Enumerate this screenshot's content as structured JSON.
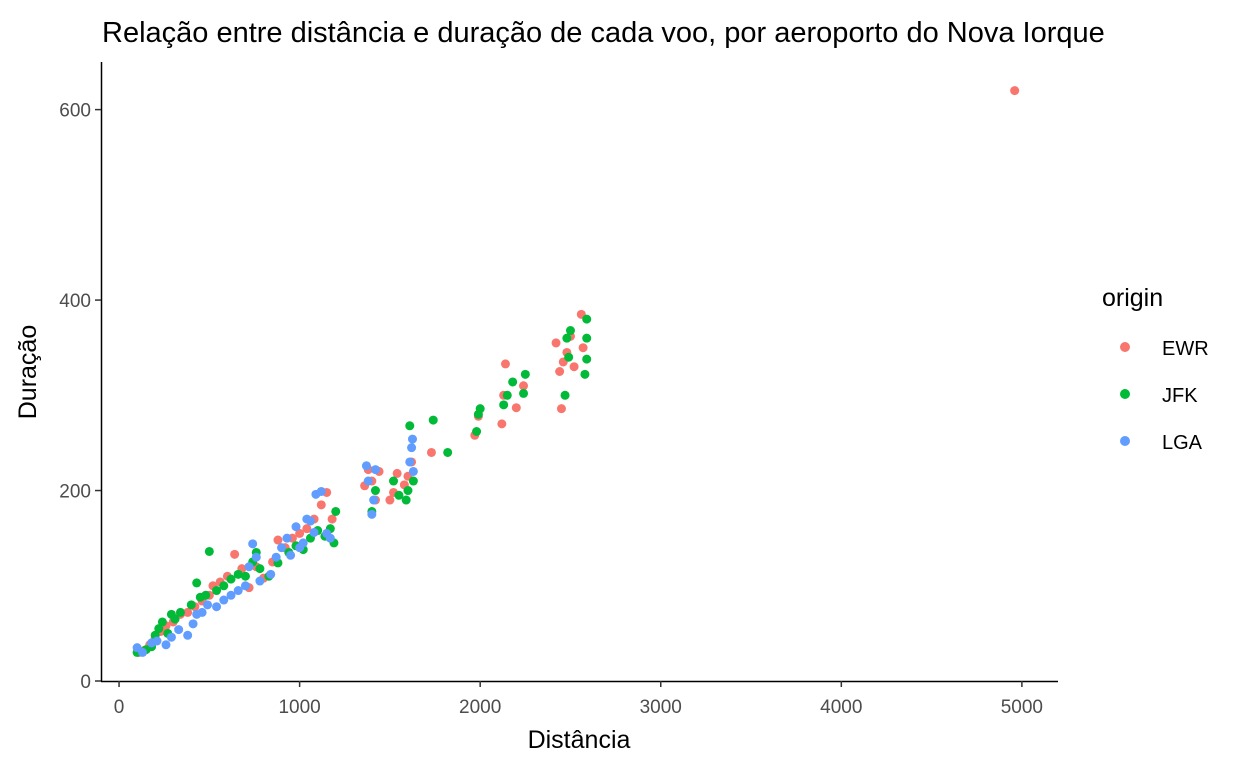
{
  "chart_data": {
    "type": "scatter",
    "title": "Relação entre distância e duração de cada voo, por aeroporto do Nova Iorque",
    "xlabel": "Distância",
    "ylabel": "Duração",
    "xlim": [
      -100,
      5200
    ],
    "ylim": [
      0,
      650
    ],
    "xticks": [
      0,
      1000,
      2000,
      3000,
      4000,
      5000
    ],
    "yticks": [
      0,
      200,
      400,
      600
    ],
    "grid": false,
    "legend": {
      "title": "origin",
      "position": "right"
    },
    "series": [
      {
        "name": "EWR",
        "color": "#F8766D",
        "points": [
          [
            110,
            30
          ],
          [
            140,
            32
          ],
          [
            170,
            38
          ],
          [
            200,
            45
          ],
          [
            230,
            52
          ],
          [
            260,
            58
          ],
          [
            300,
            62
          ],
          [
            340,
            70
          ],
          [
            380,
            72
          ],
          [
            420,
            78
          ],
          [
            460,
            84
          ],
          [
            500,
            90
          ],
          [
            520,
            100
          ],
          [
            560,
            104
          ],
          [
            600,
            110
          ],
          [
            640,
            133
          ],
          [
            680,
            118
          ],
          [
            720,
            98
          ],
          [
            760,
            120
          ],
          [
            800,
            108
          ],
          [
            850,
            125
          ],
          [
            880,
            148
          ],
          [
            920,
            140
          ],
          [
            960,
            150
          ],
          [
            1000,
            155
          ],
          [
            1040,
            160
          ],
          [
            1080,
            170
          ],
          [
            1120,
            185
          ],
          [
            1150,
            198
          ],
          [
            1180,
            170
          ],
          [
            1360,
            205
          ],
          [
            1380,
            222
          ],
          [
            1400,
            210
          ],
          [
            1420,
            190
          ],
          [
            1440,
            220
          ],
          [
            1500,
            190
          ],
          [
            1520,
            198
          ],
          [
            1540,
            218
          ],
          [
            1580,
            206
          ],
          [
            1600,
            215
          ],
          [
            1620,
            230
          ],
          [
            1730,
            240
          ],
          [
            1970,
            258
          ],
          [
            1990,
            278
          ],
          [
            2120,
            270
          ],
          [
            2130,
            300
          ],
          [
            2140,
            333
          ],
          [
            2200,
            287
          ],
          [
            2240,
            310
          ],
          [
            2420,
            355
          ],
          [
            2440,
            325
          ],
          [
            2450,
            286
          ],
          [
            2460,
            335
          ],
          [
            2480,
            345
          ],
          [
            2500,
            362
          ],
          [
            2520,
            330
          ],
          [
            2560,
            385
          ],
          [
            2570,
            350
          ],
          [
            4960,
            620
          ]
        ]
      },
      {
        "name": "JFK",
        "color": "#00BA38",
        "points": [
          [
            100,
            30
          ],
          [
            150,
            33
          ],
          [
            180,
            36
          ],
          [
            200,
            48
          ],
          [
            220,
            55
          ],
          [
            240,
            62
          ],
          [
            270,
            50
          ],
          [
            290,
            70
          ],
          [
            310,
            65
          ],
          [
            340,
            72
          ],
          [
            400,
            80
          ],
          [
            430,
            103
          ],
          [
            450,
            88
          ],
          [
            480,
            90
          ],
          [
            500,
            136
          ],
          [
            540,
            95
          ],
          [
            580,
            100
          ],
          [
            620,
            107
          ],
          [
            660,
            112
          ],
          [
            700,
            110
          ],
          [
            740,
            125
          ],
          [
            760,
            135
          ],
          [
            780,
            118
          ],
          [
            830,
            110
          ],
          [
            880,
            124
          ],
          [
            940,
            135
          ],
          [
            980,
            142
          ],
          [
            1020,
            138
          ],
          [
            1060,
            150
          ],
          [
            1100,
            158
          ],
          [
            1140,
            152
          ],
          [
            1170,
            160
          ],
          [
            1190,
            145
          ],
          [
            1200,
            178
          ],
          [
            1400,
            178
          ],
          [
            1420,
            200
          ],
          [
            1520,
            210
          ],
          [
            1550,
            195
          ],
          [
            1590,
            190
          ],
          [
            1600,
            200
          ],
          [
            1610,
            268
          ],
          [
            1630,
            210
          ],
          [
            1740,
            274
          ],
          [
            1820,
            240
          ],
          [
            1980,
            262
          ],
          [
            1990,
            280
          ],
          [
            2000,
            286
          ],
          [
            2130,
            290
          ],
          [
            2150,
            300
          ],
          [
            2180,
            314
          ],
          [
            2240,
            302
          ],
          [
            2250,
            322
          ],
          [
            2470,
            300
          ],
          [
            2480,
            360
          ],
          [
            2490,
            340
          ],
          [
            2500,
            368
          ],
          [
            2580,
            322
          ],
          [
            2590,
            338
          ],
          [
            2590,
            360
          ],
          [
            2590,
            380
          ]
        ]
      },
      {
        "name": "LGA",
        "color": "#619CFF",
        "points": [
          [
            100,
            35
          ],
          [
            130,
            30
          ],
          [
            180,
            40
          ],
          [
            210,
            42
          ],
          [
            260,
            38
          ],
          [
            290,
            46
          ],
          [
            330,
            54
          ],
          [
            380,
            48
          ],
          [
            410,
            60
          ],
          [
            430,
            70
          ],
          [
            460,
            72
          ],
          [
            490,
            80
          ],
          [
            540,
            78
          ],
          [
            580,
            85
          ],
          [
            620,
            90
          ],
          [
            660,
            95
          ],
          [
            700,
            100
          ],
          [
            720,
            120
          ],
          [
            740,
            144
          ],
          [
            760,
            130
          ],
          [
            780,
            105
          ],
          [
            840,
            112
          ],
          [
            870,
            130
          ],
          [
            900,
            140
          ],
          [
            930,
            150
          ],
          [
            950,
            132
          ],
          [
            980,
            162
          ],
          [
            1000,
            140
          ],
          [
            1020,
            145
          ],
          [
            1040,
            170
          ],
          [
            1060,
            168
          ],
          [
            1080,
            156
          ],
          [
            1090,
            196
          ],
          [
            1120,
            199
          ],
          [
            1150,
            155
          ],
          [
            1170,
            150
          ],
          [
            1370,
            226
          ],
          [
            1380,
            210
          ],
          [
            1400,
            175
          ],
          [
            1410,
            190
          ],
          [
            1420,
            222
          ],
          [
            1610,
            230
          ],
          [
            1620,
            245
          ],
          [
            1625,
            254
          ],
          [
            1630,
            220
          ]
        ]
      }
    ]
  }
}
